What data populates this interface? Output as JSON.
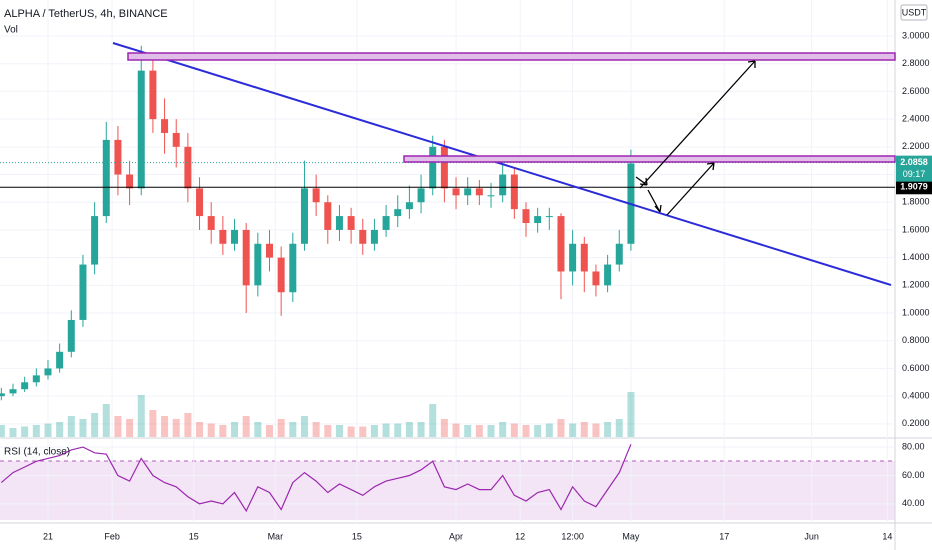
{
  "chart_data": {
    "type": "candlestick",
    "title": "ALPHA / TetherUS, 4h, BINANCE",
    "volume_label": "Vol",
    "currency": "USDT",
    "x": [
      12,
      14,
      16,
      18,
      20,
      22,
      24,
      26,
      28,
      30,
      32,
      34,
      36,
      38,
      40,
      42,
      44,
      46,
      48,
      50,
      52,
      54,
      56,
      58,
      60,
      62,
      64,
      66,
      68,
      70,
      72,
      74,
      76,
      78,
      80,
      82,
      84,
      86,
      88,
      90,
      92,
      94,
      96,
      98,
      100,
      102,
      104,
      106,
      108,
      110,
      112,
      114,
      116,
      118,
      120
    ],
    "open": [
      0.4,
      0.42,
      0.45,
      0.5,
      0.55,
      0.6,
      0.72,
      0.95,
      1.35,
      1.7,
      2.25,
      2.0,
      1.9,
      2.75,
      2.4,
      2.3,
      2.2,
      1.9,
      1.7,
      1.6,
      1.5,
      1.6,
      1.2,
      1.5,
      1.4,
      1.15,
      1.5,
      1.9,
      1.8,
      1.6,
      1.7,
      1.6,
      1.5,
      1.6,
      1.7,
      1.75,
      1.8,
      1.9,
      2.2,
      1.9,
      1.85,
      1.9,
      1.85,
      1.85,
      2.0,
      1.75,
      1.65,
      1.7,
      1.7,
      1.3,
      1.5,
      1.3,
      1.2,
      1.35,
      1.5
    ],
    "high": [
      0.46,
      0.49,
      0.54,
      0.6,
      0.66,
      0.78,
      1.02,
      1.42,
      1.8,
      2.38,
      2.35,
      2.1,
      2.93,
      2.85,
      2.55,
      2.4,
      2.3,
      1.98,
      1.8,
      1.7,
      1.68,
      1.65,
      1.58,
      1.6,
      1.48,
      1.58,
      2.1,
      2.0,
      1.85,
      1.78,
      1.76,
      1.68,
      1.68,
      1.78,
      1.85,
      1.92,
      2.0,
      2.28,
      2.25,
      1.98,
      1.98,
      1.96,
      1.94,
      2.12,
      2.05,
      1.8,
      1.76,
      1.76,
      1.72,
      1.6,
      1.55,
      1.35,
      1.42,
      1.6,
      2.18
    ],
    "low": [
      0.37,
      0.4,
      0.43,
      0.47,
      0.52,
      0.57,
      0.68,
      0.9,
      1.28,
      1.65,
      1.85,
      1.78,
      1.85,
      2.3,
      2.15,
      2.05,
      1.8,
      1.6,
      1.5,
      1.42,
      1.45,
      1.0,
      1.12,
      1.3,
      0.98,
      1.08,
      1.45,
      1.7,
      1.5,
      1.52,
      1.5,
      1.42,
      1.45,
      1.55,
      1.62,
      1.68,
      1.72,
      1.85,
      1.8,
      1.75,
      1.78,
      1.78,
      1.76,
      1.8,
      1.68,
      1.55,
      1.58,
      1.6,
      1.1,
      1.2,
      1.15,
      1.12,
      1.15,
      1.3,
      1.45
    ],
    "close": [
      0.42,
      0.45,
      0.5,
      0.55,
      0.6,
      0.72,
      0.95,
      1.35,
      1.7,
      2.25,
      2.0,
      1.9,
      2.75,
      2.4,
      2.3,
      2.2,
      1.9,
      1.7,
      1.6,
      1.5,
      1.6,
      1.2,
      1.5,
      1.4,
      1.15,
      1.5,
      1.9,
      1.8,
      1.6,
      1.7,
      1.6,
      1.5,
      1.6,
      1.7,
      1.75,
      1.8,
      1.9,
      2.2,
      1.9,
      1.85,
      1.9,
      1.85,
      1.85,
      2.0,
      1.75,
      1.65,
      1.7,
      1.7,
      1.3,
      1.5,
      1.3,
      1.2,
      1.35,
      1.5,
      2.08
    ],
    "volume": [
      8,
      6,
      7,
      8,
      9,
      10,
      14,
      12,
      16,
      22,
      14,
      12,
      28,
      18,
      14,
      12,
      16,
      10,
      9,
      8,
      10,
      14,
      10,
      8,
      12,
      10,
      14,
      10,
      8,
      8,
      7,
      7,
      8,
      9,
      9,
      10,
      10,
      22,
      12,
      9,
      8,
      8,
      8,
      10,
      9,
      8,
      8,
      9,
      12,
      9,
      10,
      9,
      10,
      12,
      30
    ],
    "rsi_label": "RSI (14, close)",
    "rsi": [
      55,
      62,
      66,
      70,
      72,
      74,
      78,
      80,
      76,
      75,
      60,
      56,
      72,
      60,
      55,
      52,
      45,
      40,
      42,
      40,
      48,
      35,
      52,
      48,
      36,
      55,
      62,
      56,
      48,
      54,
      50,
      46,
      52,
      56,
      58,
      60,
      64,
      70,
      52,
      50,
      54,
      50,
      50,
      60,
      46,
      42,
      48,
      50,
      36,
      52,
      42,
      38,
      50,
      62,
      82
    ],
    "up_color": "#26a69a",
    "down_color": "#ef5350",
    "rsi_color": "#9c27b0",
    "xlim": [
      11.77,
      165.3
    ],
    "xticks": [
      {
        "value": 20,
        "label": "21"
      },
      {
        "value": 31,
        "label": "Feb"
      },
      {
        "value": 45,
        "label": "15"
      },
      {
        "value": 59,
        "label": "Mar"
      },
      {
        "value": 73,
        "label": "15"
      },
      {
        "value": 90,
        "label": "Apr"
      },
      {
        "value": 101,
        "label": "12"
      },
      {
        "value": 110,
        "label": "12:00"
      },
      {
        "value": 120,
        "label": "May"
      },
      {
        "value": 136,
        "label": "17"
      },
      {
        "value": 151,
        "label": "Jun"
      },
      {
        "value": 164,
        "label": "14"
      }
    ],
    "ylim": [
      0.105,
      3.26
    ],
    "yticks": [
      {
        "value": 0.2,
        "label": "0.2000"
      },
      {
        "value": 0.4,
        "label": "0.4000"
      },
      {
        "value": 0.6,
        "label": "0.6000"
      },
      {
        "value": 0.8,
        "label": "0.8000"
      },
      {
        "value": 1,
        "label": "1.0000"
      },
      {
        "value": 1.2,
        "label": "1.2000"
      },
      {
        "value": 1.4,
        "label": "1.4000"
      },
      {
        "value": 1.6,
        "label": "1.6000"
      },
      {
        "value": 1.8,
        "label": "1.8000"
      },
      {
        "value": 2,
        "label": "2.0000"
      },
      {
        "value": 2.2,
        "label": "2.2000"
      },
      {
        "value": 2.4,
        "label": "2.4000"
      },
      {
        "value": 2.6,
        "label": "2.6000"
      },
      {
        "value": 2.8,
        "label": "2.8000"
      },
      {
        "value": 3,
        "label": "3.0000"
      }
    ],
    "rsi_ylim": [
      28.6,
      85
    ],
    "rsi_yticks": [
      {
        "value": 40,
        "label": "40.00"
      },
      {
        "value": 60,
        "label": "60.00"
      },
      {
        "value": 80,
        "label": "80.00"
      }
    ],
    "last_price": {
      "value": 2.0858,
      "label": "2.0858"
    },
    "countdown": "09:17",
    "level": {
      "value": 1.9079,
      "label": "1.9079"
    }
  }
}
